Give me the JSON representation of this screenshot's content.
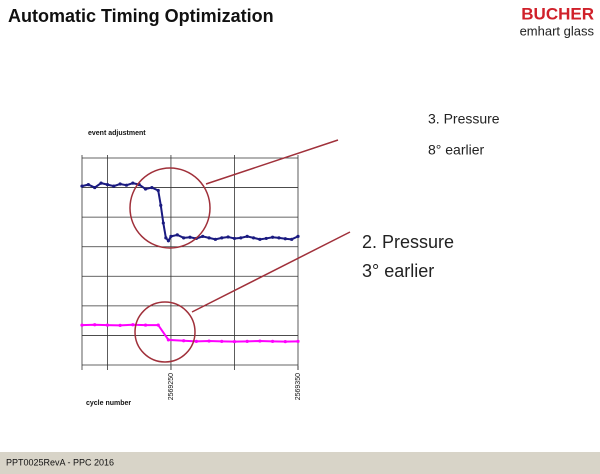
{
  "header": {
    "title": "Automatic Timing Optimization",
    "brand": "BUCHER",
    "brand_sub": "emhart glass"
  },
  "chart_data": {
    "type": "line",
    "title": "event adjustment",
    "x_label": "cycle number",
    "xlim": [
      2569180,
      2569350
    ],
    "xticks": [
      2569250,
      2569350
    ],
    "xgrid": [
      2569200,
      2569250,
      2569300,
      2569350
    ],
    "ylim": [
      0,
      7
    ],
    "ygrid": [
      0,
      1,
      2,
      3,
      4,
      5,
      6,
      7
    ],
    "series": [
      {
        "color": "#1a1a80",
        "x": [
          2569180,
          2569185,
          2569190,
          2569195,
          2569200,
          2569205,
          2569210,
          2569215,
          2569220,
          2569225,
          2569230,
          2569235,
          2569240,
          2569242,
          2569244,
          2569246,
          2569248,
          2569250,
          2569255,
          2569260,
          2569265,
          2569270,
          2569275,
          2569280,
          2569285,
          2569290,
          2569295,
          2569300,
          2569305,
          2569310,
          2569315,
          2569320,
          2569325,
          2569330,
          2569335,
          2569340,
          2569345,
          2569350
        ],
        "values": [
          6.05,
          6.1,
          6.0,
          6.15,
          6.1,
          6.05,
          6.12,
          6.08,
          6.15,
          6.1,
          5.95,
          6.0,
          5.9,
          5.4,
          4.8,
          4.3,
          4.2,
          4.35,
          4.4,
          4.3,
          4.32,
          4.28,
          4.35,
          4.3,
          4.25,
          4.3,
          4.33,
          4.28,
          4.3,
          4.35,
          4.3,
          4.25,
          4.28,
          4.32,
          4.3,
          4.27,
          4.25,
          4.35
        ]
      },
      {
        "color": "#ff00ff",
        "x": [
          2569180,
          2569190,
          2569200,
          2569210,
          2569220,
          2569230,
          2569240,
          2569248,
          2569260,
          2569270,
          2569280,
          2569290,
          2569300,
          2569310,
          2569320,
          2569330,
          2569340,
          2569350
        ],
        "values": [
          1.35,
          1.36,
          1.35,
          1.34,
          1.36,
          1.35,
          1.35,
          0.85,
          0.82,
          0.8,
          0.81,
          0.8,
          0.79,
          0.8,
          0.81,
          0.8,
          0.79,
          0.8
        ]
      }
    ]
  },
  "annotations": [
    {
      "lines": [
        "3. Pressure",
        "8° earlier"
      ]
    },
    {
      "lines": [
        "2. Pressure",
        "3° earlier"
      ]
    }
  ],
  "footer": "PPT0025RevA - PPC 2016"
}
